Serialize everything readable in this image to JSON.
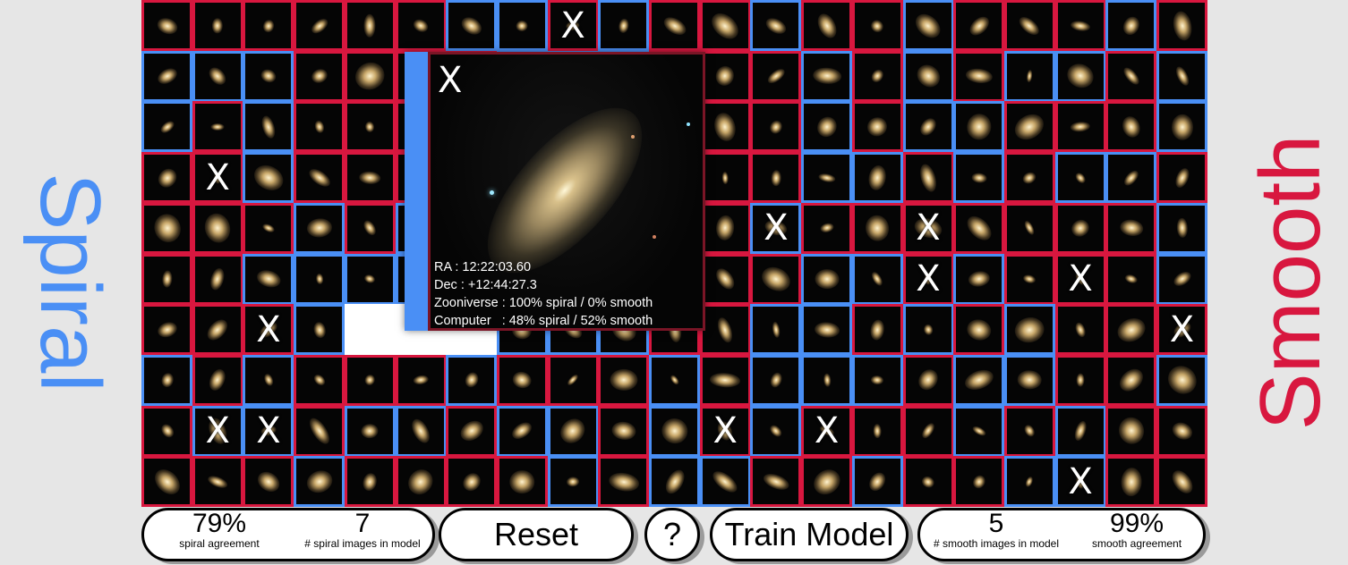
{
  "labels": {
    "spiral": "Spiral",
    "smooth": "Smooth"
  },
  "colors": {
    "spiral": "#4a8ff5",
    "smooth": "#d8173f"
  },
  "grid": {
    "rows": 10,
    "cols": 21,
    "border_codes": [
      "RRRRRRBBRBRRBRRBRRRBR",
      "BBBRRRRBBBRRRBRBRBBRB",
      "BRBRRRRBBBRRRBRBBRRRB",
      "RRBRRRRBBBRRRBBRBRBBR",
      "RRRBRBBBBBRRBRRRRRRRB",
      "RRBBBBBBBBRRRBBRBRRRB",
      "RRRBXXXBBBRRBBRBRBRRR",
      "BRBRRRBRRRBRBBBRBBRRB",
      "RBBRBBRBBRBRBRRRBRBRR",
      "RRRBRRRRBRBBRRBRRBBRR"
    ],
    "marked": [
      [
        0,
        8
      ],
      [
        3,
        1
      ],
      [
        4,
        12
      ],
      [
        4,
        15
      ],
      [
        5,
        15
      ],
      [
        5,
        18
      ],
      [
        6,
        2
      ],
      [
        6,
        20
      ],
      [
        8,
        1
      ],
      [
        8,
        2
      ],
      [
        8,
        11
      ],
      [
        8,
        13
      ],
      [
        9,
        18
      ]
    ],
    "mark_symbol": "X"
  },
  "popup": {
    "close_label": "X",
    "ra": "RA : 12:22:03.60",
    "dec": "Dec : +12:44:27.3",
    "zooniverse": "Zooniverse : 100% spiral / 0% smooth",
    "computer": "Computer   : 48% spiral / 52% smooth"
  },
  "footer": {
    "spiral_agreement": {
      "value": "79%",
      "label": "spiral agreement"
    },
    "spiral_images": {
      "value": "7",
      "label": "# spiral images in model"
    },
    "reset_label": "Reset",
    "help_label": "?",
    "train_label": "Train Model",
    "smooth_images": {
      "value": "5",
      "label": "# smooth images in model"
    },
    "smooth_agreement": {
      "value": "99%",
      "label": "smooth agreement"
    }
  }
}
